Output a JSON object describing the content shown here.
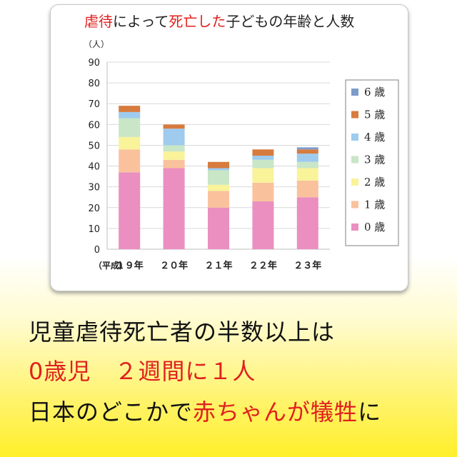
{
  "chart_data": {
    "type": "bar",
    "stacked": true,
    "title_parts": [
      {
        "text": "虐待",
        "red": true
      },
      {
        "text": "によって",
        "red": false
      },
      {
        "text": "死亡した",
        "red": true
      },
      {
        "text": "子どもの年齢と人数",
        "red": false
      }
    ],
    "ylabel": "（人）",
    "xlabel": "（平成）",
    "categories": [
      "１９年",
      "２０年",
      "２１年",
      "２２年",
      "２３年"
    ],
    "ylim": [
      0,
      90
    ],
    "yticks": [
      0,
      10,
      20,
      30,
      40,
      50,
      60,
      70,
      80,
      90
    ],
    "grid": true,
    "legend_position": "right",
    "series": [
      {
        "name": "0 歳",
        "color": "#ea8fc0",
        "values": [
          37,
          39,
          20,
          23,
          25
        ]
      },
      {
        "name": "1 歳",
        "color": "#f9c29d",
        "values": [
          11,
          4,
          8,
          9,
          8
        ]
      },
      {
        "name": "2 歳",
        "color": "#f9f39a",
        "values": [
          6,
          4,
          3,
          7,
          6
        ]
      },
      {
        "name": "3 歳",
        "color": "#c9e6c6",
        "values": [
          9,
          3,
          7,
          4,
          3
        ]
      },
      {
        "name": "4 歳",
        "color": "#9ecbee",
        "values": [
          3,
          8,
          1,
          2,
          4
        ]
      },
      {
        "name": "5 歳",
        "color": "#d77b3e",
        "values": [
          3,
          2,
          3,
          3,
          2
        ]
      },
      {
        "name": "6 歳",
        "color": "#7d9bcb",
        "values": [
          0,
          0,
          0,
          0,
          1
        ]
      }
    ]
  },
  "caption": {
    "line1": "児童虐待死亡者の半数以上は",
    "line2": "0歳児　２週間に１人",
    "line3_prefix": "日本のどこかで",
    "line3_red": "赤ちゃんが犠牲",
    "line3_suffix": "に"
  }
}
